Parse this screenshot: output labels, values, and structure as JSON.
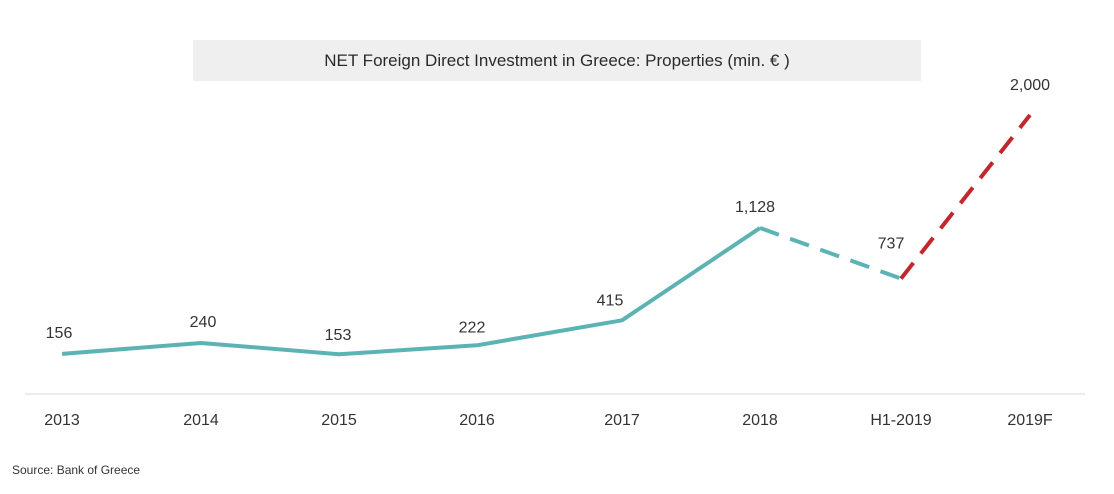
{
  "chart_data": {
    "type": "line",
    "title": "NET Foreign Direct Investment in Greece: Properties (min. € )",
    "categories": [
      "2013",
      "2014",
      "2015",
      "2016",
      "2017",
      "2018",
      "H1-2019",
      "2019F"
    ],
    "values": [
      156,
      240,
      153,
      222,
      415,
      1128,
      737,
      2000
    ],
    "value_labels": [
      "156",
      "240",
      "153",
      "222",
      "415",
      "1,128",
      "737",
      "2,000"
    ],
    "segments": [
      {
        "from": 0,
        "to": 5,
        "style": "solid",
        "color": "#5bb3b3"
      },
      {
        "from": 5,
        "to": 6,
        "style": "dashed",
        "color": "#5bb3b3"
      },
      {
        "from": 6,
        "to": 7,
        "style": "dashed",
        "color": "#c0282d"
      }
    ],
    "ylim": [
      0,
      2000
    ],
    "xlabel": "",
    "ylabel": "",
    "grid": false,
    "source": "Source: Bank of Greece"
  }
}
